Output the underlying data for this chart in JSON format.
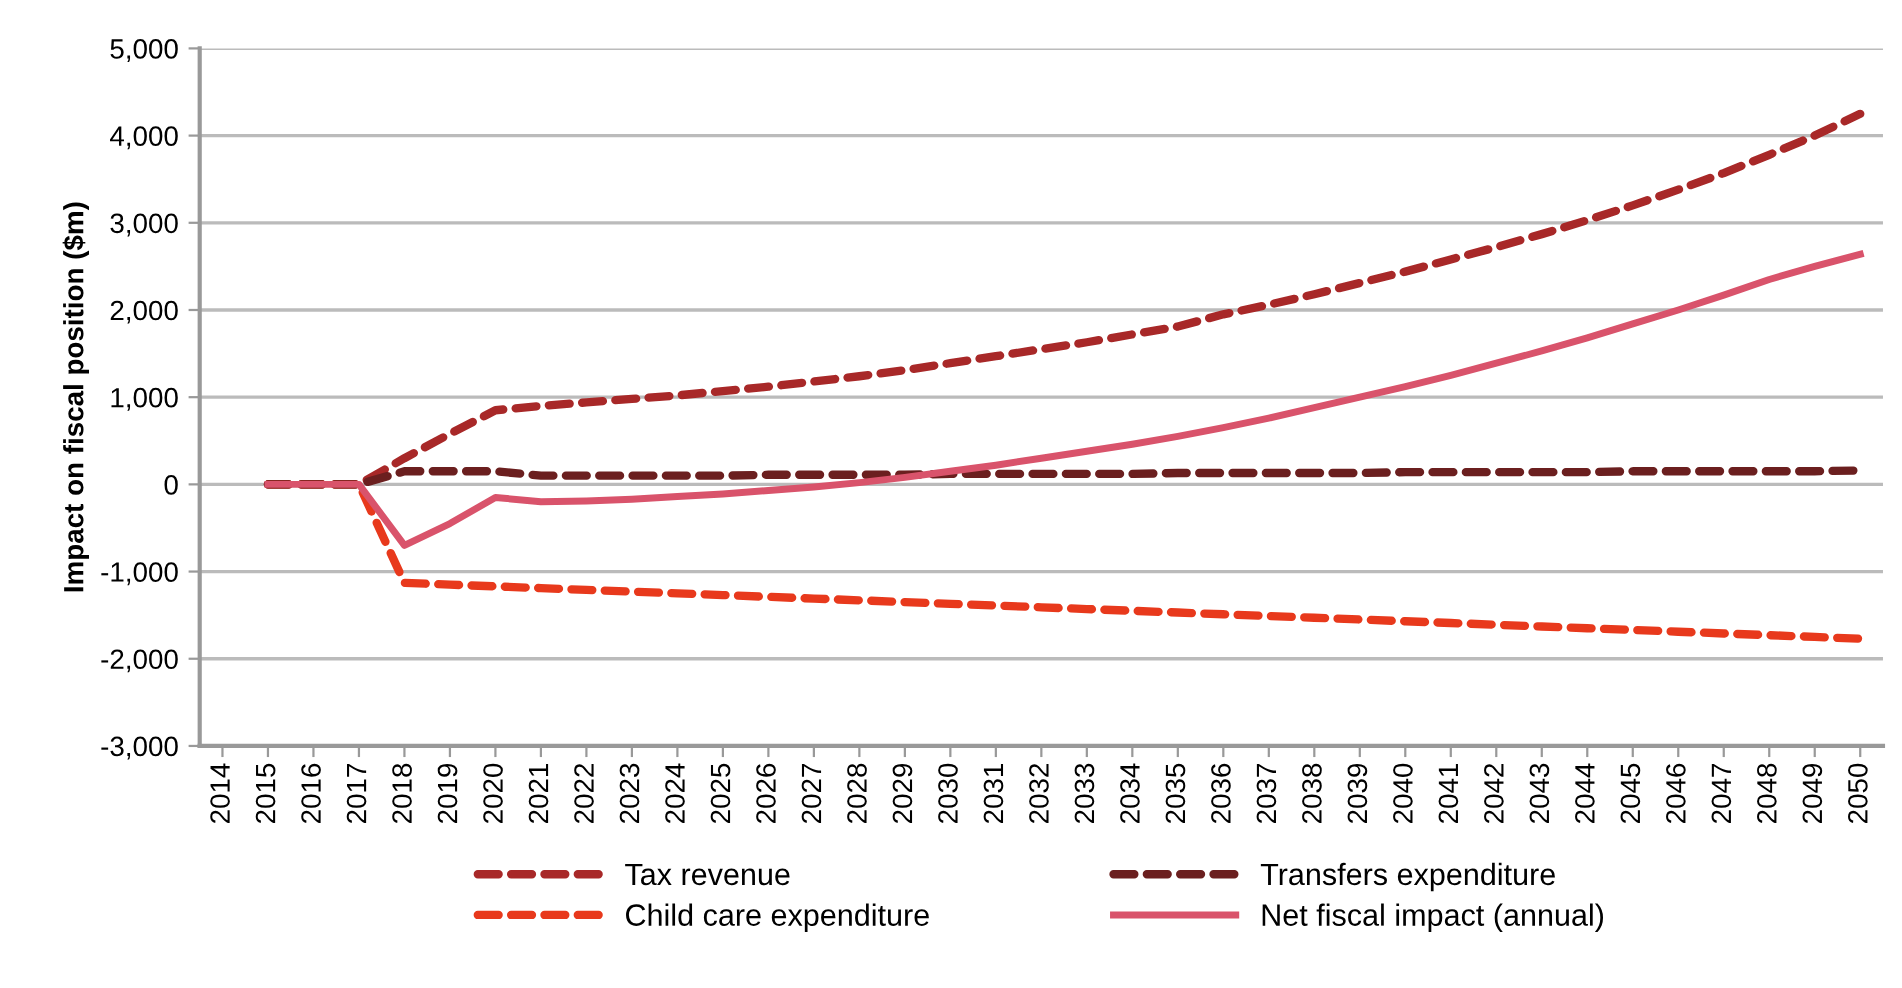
{
  "chart_data": {
    "type": "line",
    "ylabel": "Impact on fiscal position ($m)",
    "categories": [
      "2014",
      "2015",
      "2016",
      "2017",
      "2018",
      "2019",
      "2020",
      "2021",
      "2022",
      "2023",
      "2024",
      "2025",
      "2026",
      "2027",
      "2028",
      "2029",
      "2030",
      "2031",
      "2032",
      "2033",
      "2034",
      "2035",
      "2036",
      "2037",
      "2038",
      "2039",
      "2040",
      "2041",
      "2042",
      "2043",
      "2044",
      "2045",
      "2046",
      "2047",
      "2048",
      "2049",
      "2050"
    ],
    "series": [
      {
        "name": "Tax revenue",
        "color": "#a82828",
        "line_style": "dashed",
        "values": [
          null,
          0,
          0,
          0,
          300,
          580,
          850,
          900,
          940,
          980,
          1020,
          1070,
          1120,
          1180,
          1240,
          1310,
          1390,
          1470,
          1550,
          1630,
          1720,
          1810,
          1950,
          2060,
          2180,
          2310,
          2440,
          2580,
          2720,
          2870,
          3030,
          3200,
          3380,
          3570,
          3780,
          4000,
          4250
        ]
      },
      {
        "name": "Child care expenditure",
        "color": "#e8391c",
        "line_style": "dashed",
        "values": [
          null,
          0,
          0,
          0,
          -1130,
          -1150,
          -1170,
          -1190,
          -1210,
          -1230,
          -1250,
          -1270,
          -1290,
          -1310,
          -1330,
          -1350,
          -1370,
          -1390,
          -1410,
          -1430,
          -1450,
          -1470,
          -1490,
          -1510,
          -1530,
          -1550,
          -1570,
          -1590,
          -1610,
          -1630,
          -1650,
          -1670,
          -1690,
          -1710,
          -1730,
          -1750,
          -1770
        ]
      },
      {
        "name": "Transfers expenditure",
        "color": "#6b1f1f",
        "line_style": "dashed",
        "values": [
          null,
          0,
          0,
          0,
          150,
          150,
          150,
          100,
          100,
          100,
          100,
          100,
          110,
          110,
          110,
          110,
          120,
          120,
          120,
          120,
          120,
          130,
          130,
          130,
          130,
          130,
          140,
          140,
          140,
          140,
          140,
          150,
          150,
          150,
          150,
          150,
          160
        ]
      },
      {
        "name": "Net fiscal impact (annual)",
        "color": "#d9536b",
        "line_style": "solid",
        "values": [
          null,
          0,
          0,
          0,
          -700,
          -450,
          -150,
          -200,
          -190,
          -170,
          -140,
          -110,
          -70,
          -30,
          20,
          80,
          150,
          220,
          300,
          380,
          460,
          550,
          650,
          760,
          880,
          1000,
          1120,
          1250,
          1390,
          1530,
          1680,
          1840,
          2000,
          2170,
          2350,
          2500,
          2640
        ]
      }
    ],
    "ylim": [
      -3000,
      5000
    ],
    "yticks": [
      {
        "value": -3000,
        "label": "-3,000"
      },
      {
        "value": -2000,
        "label": "-2,000"
      },
      {
        "value": -1000,
        "label": "-1,000"
      },
      0,
      {
        "value": 1000,
        "label": "1,000"
      },
      {
        "value": 2000,
        "label": "2,000"
      },
      {
        "value": 3000,
        "label": "3,000"
      },
      {
        "value": 4000,
        "label": "4,000"
      },
      {
        "value": 5000,
        "label": "5,000"
      }
    ],
    "grid": "y",
    "legend": "bottom",
    "marker": "none"
  }
}
